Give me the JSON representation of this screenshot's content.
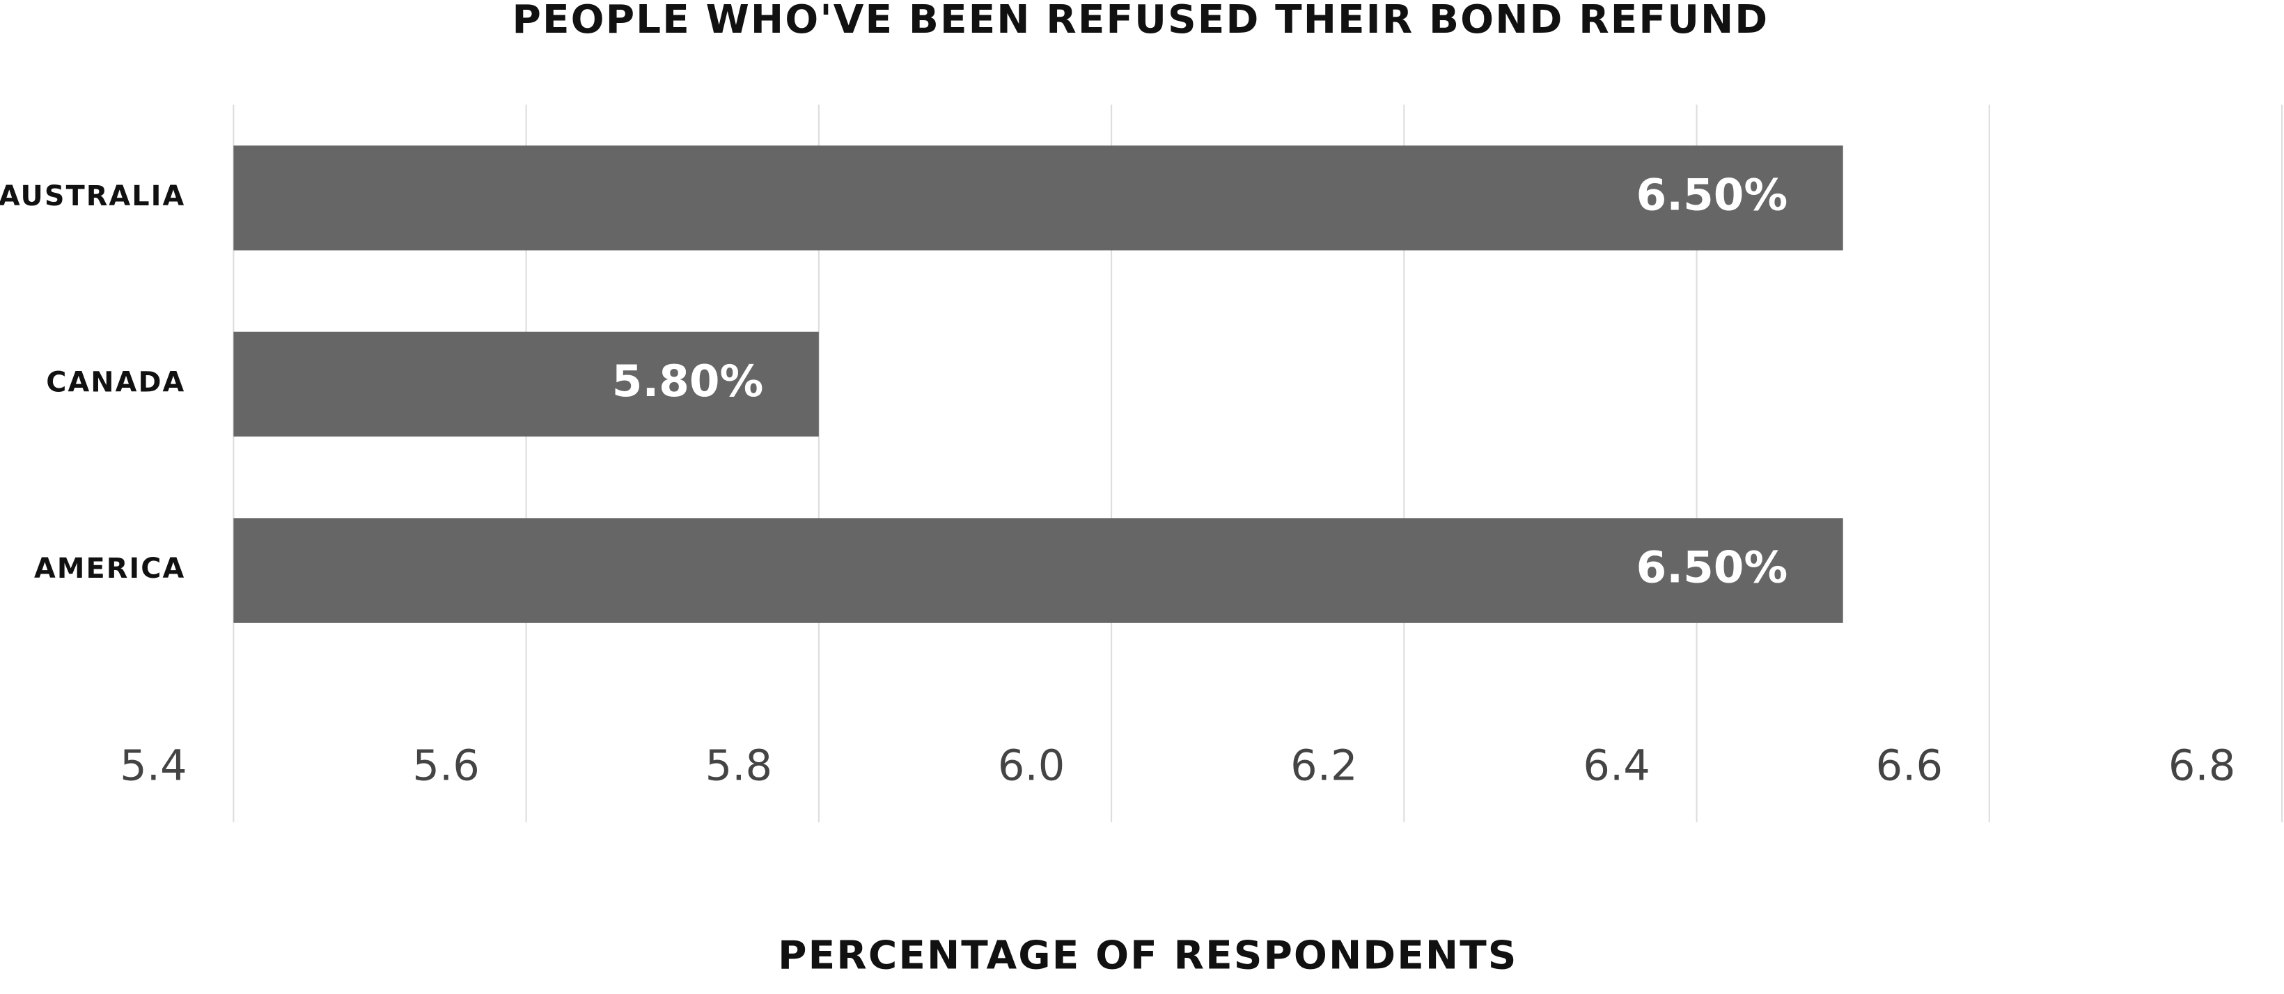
{
  "chart_data": {
    "type": "bar",
    "orientation": "horizontal",
    "title": "PEOPLE WHO'VE BEEN REFUSED THEIR BOND REFUND",
    "x_label": "PERCENTAGE OF RESPONDENTS",
    "categories": [
      "AUSTRALIA",
      "CANADA",
      "AMERICA"
    ],
    "values": [
      6.5,
      5.8,
      6.5
    ],
    "value_labels": [
      "6.50%",
      "5.80%",
      "6.50%"
    ],
    "color": "#666666",
    "xlim": [
      5.4,
      6.8
    ],
    "xticks": [
      5.4,
      5.6,
      5.8,
      {
        "value": 6,
        "label": "6.0"
      },
      6.2,
      6.4,
      6.6,
      6.8
    ],
    "grid": true
  }
}
